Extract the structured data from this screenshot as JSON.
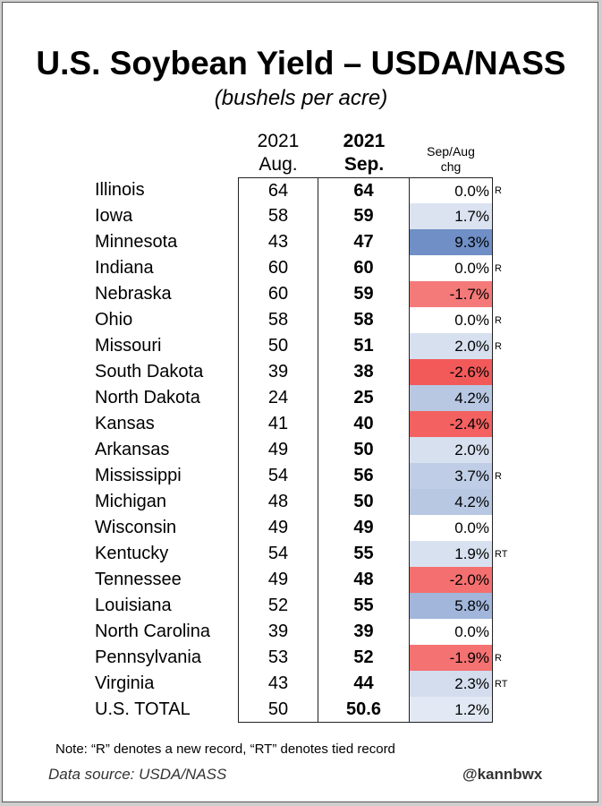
{
  "title": "U.S. Soybean Yield – USDA/NASS",
  "subtitle": "(bushels per acre)",
  "headers": {
    "aug": [
      "2021",
      "Aug."
    ],
    "sep": [
      "2021",
      "Sep."
    ],
    "chg": [
      "Sep/Aug",
      "chg"
    ]
  },
  "note": "Note: “R” denotes a new record, “RT” denotes tied record",
  "source": "Data source: USDA/NASS",
  "handle": "@kannbwx",
  "colors": {
    "positive_max": "#6f8fc6",
    "negative_max": "#f25a5a",
    "neutral": "#ffffff"
  },
  "chart_data": {
    "type": "table",
    "columns": [
      "",
      "2021 Aug.",
      "2021 Sep.",
      "Sep/Aug chg"
    ],
    "rows": [
      {
        "state": "Illinois",
        "aug": "64",
        "sep": "64",
        "chg": "0.0%",
        "chg_value": 0.0,
        "flag": "R"
      },
      {
        "state": "Iowa",
        "aug": "58",
        "sep": "59",
        "chg": "1.7%",
        "chg_value": 1.7,
        "flag": ""
      },
      {
        "state": "Minnesota",
        "aug": "43",
        "sep": "47",
        "chg": "9.3%",
        "chg_value": 9.3,
        "flag": ""
      },
      {
        "state": "Indiana",
        "aug": "60",
        "sep": "60",
        "chg": "0.0%",
        "chg_value": 0.0,
        "flag": "R"
      },
      {
        "state": "Nebraska",
        "aug": "60",
        "sep": "59",
        "chg": "-1.7%",
        "chg_value": -1.7,
        "flag": ""
      },
      {
        "state": "Ohio",
        "aug": "58",
        "sep": "58",
        "chg": "0.0%",
        "chg_value": 0.0,
        "flag": "R"
      },
      {
        "state": "Missouri",
        "aug": "50",
        "sep": "51",
        "chg": "2.0%",
        "chg_value": 2.0,
        "flag": "R"
      },
      {
        "state": "South Dakota",
        "aug": "39",
        "sep": "38",
        "chg": "-2.6%",
        "chg_value": -2.6,
        "flag": ""
      },
      {
        "state": "North Dakota",
        "aug": "24",
        "sep": "25",
        "chg": "4.2%",
        "chg_value": 4.2,
        "flag": ""
      },
      {
        "state": "Kansas",
        "aug": "41",
        "sep": "40",
        "chg": "-2.4%",
        "chg_value": -2.4,
        "flag": ""
      },
      {
        "state": "Arkansas",
        "aug": "49",
        "sep": "50",
        "chg": "2.0%",
        "chg_value": 2.0,
        "flag": ""
      },
      {
        "state": "Mississippi",
        "aug": "54",
        "sep": "56",
        "chg": "3.7%",
        "chg_value": 3.7,
        "flag": "R"
      },
      {
        "state": "Michigan",
        "aug": "48",
        "sep": "50",
        "chg": "4.2%",
        "chg_value": 4.2,
        "flag": ""
      },
      {
        "state": "Wisconsin",
        "aug": "49",
        "sep": "49",
        "chg": "0.0%",
        "chg_value": 0.0,
        "flag": ""
      },
      {
        "state": "Kentucky",
        "aug": "54",
        "sep": "55",
        "chg": "1.9%",
        "chg_value": 1.9,
        "flag": "RT"
      },
      {
        "state": "Tennessee",
        "aug": "49",
        "sep": "48",
        "chg": "-2.0%",
        "chg_value": -2.0,
        "flag": ""
      },
      {
        "state": "Louisiana",
        "aug": "52",
        "sep": "55",
        "chg": "5.8%",
        "chg_value": 5.8,
        "flag": ""
      },
      {
        "state": "North Carolina",
        "aug": "39",
        "sep": "39",
        "chg": "0.0%",
        "chg_value": 0.0,
        "flag": ""
      },
      {
        "state": "Pennsylvania",
        "aug": "53",
        "sep": "52",
        "chg": "-1.9%",
        "chg_value": -1.9,
        "flag": "R"
      },
      {
        "state": "Virginia",
        "aug": "43",
        "sep": "44",
        "chg": "2.3%",
        "chg_value": 2.3,
        "flag": "RT"
      },
      {
        "state": "U.S. TOTAL",
        "aug": "50",
        "sep": "50.6",
        "chg": "1.2%",
        "chg_value": 1.2,
        "flag": ""
      }
    ]
  }
}
